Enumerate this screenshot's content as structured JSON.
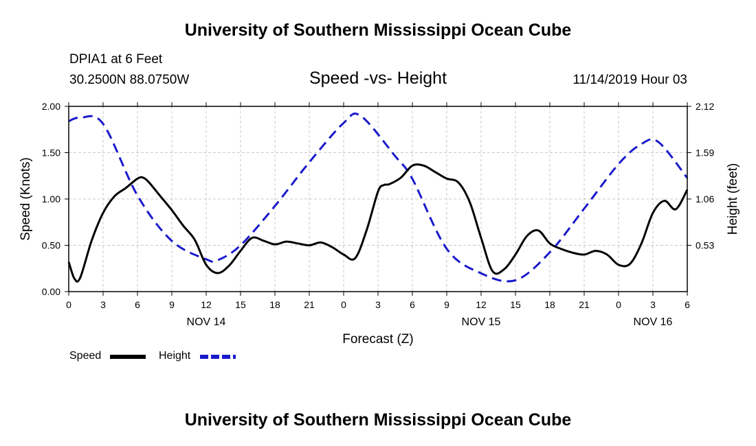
{
  "header": {
    "title": "University of Southern Mississippi Ocean Cube",
    "station": "DPIA1 at 6 Feet",
    "coordinates": "30.2500N 88.0750W",
    "chart_title": "Speed -vs- Height",
    "datetime": "11/14/2019 Hour 03"
  },
  "footer": {
    "title": "University of Southern Mississippi Ocean Cube"
  },
  "colors": {
    "speed": "#000000",
    "height": "#1a1acc",
    "grid": "#c8c8c8"
  },
  "chart_data": {
    "type": "line",
    "title": "Speed -vs- Height",
    "xlabel": "Forecast (Z)",
    "ylabel": "Speed (Knots)",
    "y2label": "Height (feet)",
    "x_range": [
      0,
      54
    ],
    "ylim": [
      0,
      2
    ],
    "y2lim": [
      0,
      2.12
    ],
    "x_ticks": [
      0,
      3,
      6,
      9,
      12,
      15,
      18,
      21,
      24,
      27,
      30,
      33,
      36,
      39,
      42,
      45,
      48,
      51,
      54
    ],
    "x_tick_labels": [
      "0",
      "3",
      "6",
      "9",
      "12",
      "15",
      "18",
      "21",
      "0",
      "3",
      "6",
      "9",
      "12",
      "15",
      "18",
      "21",
      "0",
      "3",
      "6"
    ],
    "y_ticks": [
      0,
      0.5,
      1,
      1.5,
      2
    ],
    "y_tick_labels": [
      "0.00",
      "0.50",
      "1.00",
      "1.50",
      "2.00"
    ],
    "y2_ticks": [
      0.53,
      1.06,
      1.59,
      2.12
    ],
    "y2_tick_labels": [
      "0.53",
      "1.06",
      "1.59",
      "2.12"
    ],
    "day_labels": [
      {
        "label": "NOV 14",
        "x": 12
      },
      {
        "label": "NOV 15",
        "x": 36
      },
      {
        "label": "NOV 16",
        "x": 51
      }
    ],
    "legend": [
      {
        "name": "Speed",
        "style": "solid"
      },
      {
        "name": "Height",
        "style": "dashed"
      }
    ],
    "series": [
      {
        "name": "Speed",
        "axis": "left",
        "x": [
          0,
          0.5,
          1,
          2,
          3,
          4,
          5,
          6,
          6.5,
          7,
          8,
          9,
          10,
          11,
          12,
          13,
          14,
          15,
          16,
          17,
          18,
          19,
          20,
          21,
          22,
          23,
          24,
          25,
          26,
          27,
          27.5,
          28,
          29,
          30,
          31,
          32,
          33,
          34,
          35,
          36,
          37,
          38,
          39,
          40,
          41,
          42,
          43,
          44,
          45,
          46,
          47,
          48,
          49,
          50,
          51,
          52,
          53,
          54
        ],
        "values": [
          0.32,
          0.14,
          0.15,
          0.55,
          0.85,
          1.03,
          1.12,
          1.22,
          1.23,
          1.18,
          1.03,
          0.88,
          0.71,
          0.56,
          0.29,
          0.2,
          0.28,
          0.44,
          0.58,
          0.55,
          0.51,
          0.54,
          0.52,
          0.5,
          0.53,
          0.48,
          0.4,
          0.36,
          0.66,
          1.08,
          1.15,
          1.16,
          1.23,
          1.36,
          1.36,
          1.29,
          1.22,
          1.18,
          0.97,
          0.58,
          0.22,
          0.24,
          0.4,
          0.6,
          0.66,
          0.52,
          0.46,
          0.42,
          0.4,
          0.44,
          0.4,
          0.29,
          0.3,
          0.52,
          0.85,
          0.98,
          0.89,
          1.1
        ]
      },
      {
        "name": "Height",
        "axis": "right",
        "x": [
          0,
          1,
          3,
          6,
          9,
          12,
          13,
          15,
          18,
          21,
          24,
          25.5,
          28.5,
          30,
          33,
          36,
          39,
          42,
          45,
          48,
          50,
          51.5,
          54
        ],
        "values": [
          1.95,
          1.99,
          1.92,
          1.1,
          0.58,
          0.37,
          0.36,
          0.53,
          0.98,
          1.48,
          1.93,
          2.01,
          1.55,
          1.29,
          0.49,
          0.21,
          0.13,
          0.45,
          0.95,
          1.46,
          1.69,
          1.71,
          1.3
        ]
      }
    ]
  }
}
